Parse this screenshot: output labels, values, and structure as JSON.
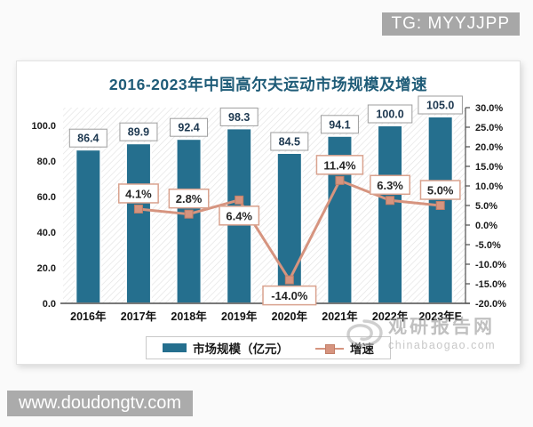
{
  "page": {
    "tg_badge": "TG: MYYJJPP",
    "bottom_badge": "www.doudongtv.com",
    "watermark": {
      "name": "观研报告网",
      "site": "chinabaogao.com"
    }
  },
  "chart_data": {
    "type": "bar+line combo",
    "title": "2016-2023年中国高尔夫运动市场规模及增速",
    "categories": [
      "2016年",
      "2017年",
      "2018年",
      "2019年",
      "2020年",
      "2021年",
      "2022年",
      "2023年E"
    ],
    "series": [
      {
        "name": "市场规模（亿元）",
        "type": "bar",
        "axis": "left",
        "values": [
          86.4,
          89.9,
          92.4,
          98.3,
          84.5,
          94.1,
          100.0,
          105.0
        ],
        "labels": [
          "86.4",
          "89.9",
          "92.4",
          "98.3",
          "84.5",
          "94.1",
          "100.0",
          "105.0"
        ]
      },
      {
        "name": "增速",
        "type": "line",
        "axis": "right",
        "values": [
          null,
          4.1,
          2.8,
          6.4,
          -14.0,
          11.4,
          6.3,
          5.0
        ],
        "labels": [
          "",
          "4.1%",
          "2.8%",
          "6.4%",
          "-14.0%",
          "11.4%",
          "6.3%",
          "5.0%"
        ],
        "label_positions": [
          "",
          "above",
          "above",
          "below",
          "below",
          "above",
          "above",
          "above"
        ]
      }
    ],
    "left_axis": {
      "min": 0,
      "max": 110,
      "ticks": [
        0,
        20,
        40,
        60,
        80,
        100
      ],
      "tick_labels": [
        "0.0",
        "20.0",
        "40.0",
        "60.0",
        "80.0",
        "100.0"
      ]
    },
    "right_axis": {
      "min": -20,
      "max": 30,
      "ticks": [
        30,
        25,
        20,
        15,
        10,
        5,
        0,
        -5,
        -10,
        -15,
        -20
      ],
      "tick_labels": [
        "30.0%",
        "25.0%",
        "20.0%",
        "15.0%",
        "10.0%",
        "5.0%",
        "0.0%",
        "-5.0%",
        "-10.0%",
        "-15.0%",
        "-20.0%"
      ]
    },
    "legend_position": "bottom",
    "plot_background": "diagonal-hatch",
    "colors": {
      "bar": "#256f8e",
      "line": "#d6947f",
      "marker_border": "#c27e67",
      "growth_box_border": "#d9a28e",
      "bar_box_border": "#9e9e9e",
      "axis": "#4d4d4d",
      "title": "#1f5c78",
      "hatch": "#e3e3e3"
    }
  }
}
